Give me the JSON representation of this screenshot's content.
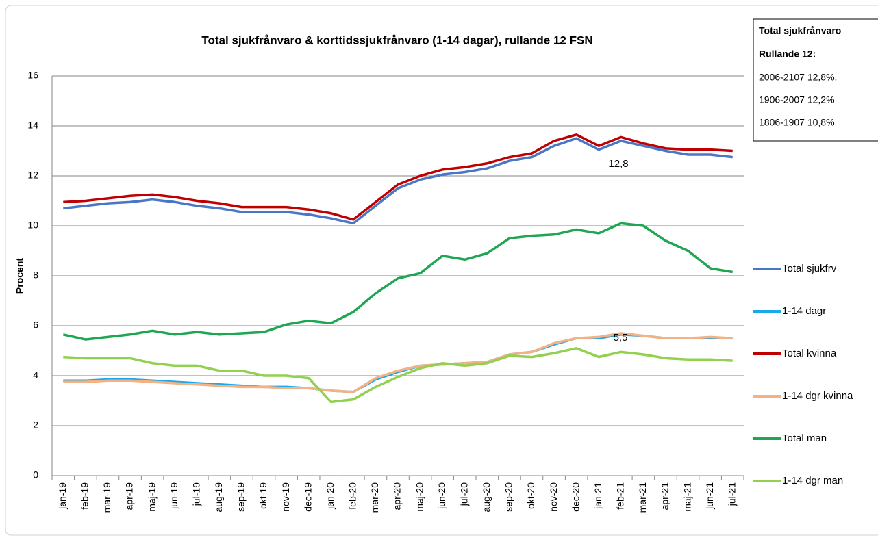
{
  "chart_data": {
    "type": "line",
    "title": "Total sjukfrånvaro & korttidssjukfrånvaro (1-14 dagar), rullande 12 FSN",
    "y_label": "Procent",
    "categories": [
      "jan-19",
      "feb-19",
      "mar-19",
      "apr-19",
      "maj-19",
      "jun-19",
      "jul-19",
      "aug-19",
      "sep-19",
      "okt-19",
      "nov-19",
      "dec-19",
      "jan-20",
      "feb-20",
      "mar-20",
      "apr-20",
      "maj-20",
      "jun-20",
      "jul-20",
      "aug-20",
      "sep-20",
      "okt-20",
      "nov-20",
      "dec-20",
      "jan-21",
      "feb-21",
      "mar-21",
      "apr-21",
      "maj-21",
      "jun-21",
      "jul-21"
    ],
    "series": [
      {
        "name": "Total sjukfrv",
        "color": "#4a76c6",
        "values": [
          10.7,
          10.8,
          10.9,
          10.95,
          11.05,
          10.95,
          10.8,
          10.7,
          10.55,
          10.55,
          10.55,
          10.45,
          10.3,
          10.1,
          10.8,
          11.5,
          11.85,
          12.05,
          12.15,
          12.3,
          12.6,
          12.75,
          13.2,
          13.5,
          13.05,
          13.4,
          13.2,
          13.0,
          12.85,
          12.85,
          12.75
        ]
      },
      {
        "name": "1-14 dagr",
        "color": "#1aa7ec",
        "values": [
          3.8,
          3.8,
          3.85,
          3.85,
          3.8,
          3.75,
          3.7,
          3.65,
          3.6,
          3.55,
          3.55,
          3.5,
          3.4,
          3.35,
          3.85,
          4.15,
          4.4,
          4.45,
          4.5,
          4.55,
          4.85,
          4.95,
          5.25,
          5.5,
          5.5,
          5.65,
          5.6,
          5.5,
          5.5,
          5.5,
          5.5
        ]
      },
      {
        "name": "Total kvinna",
        "color": "#c00000",
        "values": [
          10.95,
          11.0,
          11.1,
          11.2,
          11.25,
          11.15,
          11.0,
          10.9,
          10.75,
          10.75,
          10.75,
          10.65,
          10.5,
          10.25,
          10.95,
          11.65,
          12.0,
          12.25,
          12.35,
          12.5,
          12.75,
          12.9,
          13.4,
          13.65,
          13.2,
          13.55,
          13.3,
          13.1,
          13.05,
          13.05,
          13.0
        ]
      },
      {
        "name": "1-14 dgr kvinna",
        "color": "#f4b183",
        "values": [
          3.75,
          3.75,
          3.8,
          3.8,
          3.75,
          3.7,
          3.65,
          3.6,
          3.55,
          3.55,
          3.5,
          3.5,
          3.4,
          3.35,
          3.9,
          4.2,
          4.4,
          4.45,
          4.5,
          4.55,
          4.85,
          4.95,
          5.3,
          5.5,
          5.55,
          5.7,
          5.6,
          5.5,
          5.5,
          5.55,
          5.5
        ]
      },
      {
        "name": "Total man",
        "color": "#1fa653",
        "values": [
          5.65,
          5.45,
          5.55,
          5.65,
          5.8,
          5.65,
          5.75,
          5.65,
          5.7,
          5.75,
          6.05,
          6.2,
          6.1,
          6.55,
          7.3,
          7.9,
          8.1,
          8.8,
          8.65,
          8.9,
          9.5,
          9.6,
          9.65,
          9.85,
          9.7,
          10.1,
          10.0,
          9.4,
          9.0,
          8.3,
          8.15
        ]
      },
      {
        "name": "1-14 dgr man",
        "color": "#92d050",
        "values": [
          4.75,
          4.7,
          4.7,
          4.7,
          4.5,
          4.4,
          4.4,
          4.2,
          4.2,
          4.0,
          4.0,
          3.9,
          2.95,
          3.05,
          3.55,
          3.95,
          4.3,
          4.5,
          4.4,
          4.5,
          4.8,
          4.75,
          4.9,
          5.1,
          4.75,
          4.95,
          4.85,
          4.7,
          4.65,
          4.65,
          4.6
        ]
      }
    ],
    "annotations": [
      "12,8",
      "5,5"
    ],
    "text_box": [
      "Total sjukfrånvaro",
      "Rullande 12:",
      "2006-2107  12,8%.",
      "1906-2007  12,2%",
      "1806-1907  10,8%"
    ],
    "ylim": [
      0,
      16
    ],
    "yticks": [
      0,
      2,
      4,
      6,
      8,
      10,
      12,
      14,
      16
    ],
    "grid": true
  }
}
